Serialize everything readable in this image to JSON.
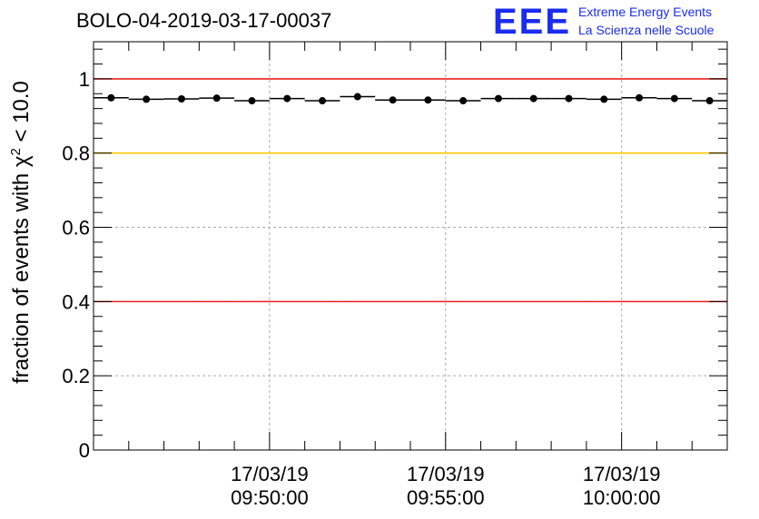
{
  "header": {
    "run_title": "BOLO-04-2019-03-17-00037",
    "logo_text": "EEE",
    "logo_line1": "Extreme Energy Events",
    "logo_line2": "La Scienza nelle Scuole"
  },
  "colors": {
    "axis": "#000000",
    "grid": "#aaaaaa",
    "red_line": "#e8201a",
    "yellow_line": "#ffc800",
    "marker": "#000000",
    "brand": "#1a2cf0"
  },
  "chart_data": {
    "type": "scatter",
    "title": "BOLO-04-2019-03-17-00037",
    "xlabel": "",
    "ylabel": "fraction of events with χ² < 10.0",
    "ylabel_parts": {
      "before": "fraction of events with ",
      "symbol": "χ",
      "superscript": "2",
      "after": " < 10.0"
    },
    "ylim": [
      0,
      1.1
    ],
    "yticks": [
      0,
      0.2,
      0.4,
      0.6,
      0.8,
      1
    ],
    "ytick_labels": [
      "0",
      "0.2",
      "0.4",
      "0.6",
      "0.8",
      "1"
    ],
    "xlim_minutes": [
      0,
      18
    ],
    "xticks_minutes": [
      5,
      10,
      15
    ],
    "xtick_labels": [
      [
        "17/03/19",
        "09:50:00"
      ],
      [
        "17/03/19",
        "09:55:00"
      ],
      [
        "17/03/19",
        "10:00:00"
      ]
    ],
    "bin_width_minutes": 1,
    "x": [
      0.5,
      1.5,
      2.5,
      3.5,
      4.5,
      5.5,
      6.5,
      7.5,
      8.5,
      9.5,
      10.5,
      11.5,
      12.5,
      13.5,
      14.5,
      15.5,
      16.5,
      17.5
    ],
    "values": [
      0.949,
      0.945,
      0.946,
      0.948,
      0.941,
      0.947,
      0.941,
      0.952,
      0.943,
      0.943,
      0.941,
      0.947,
      0.947,
      0.947,
      0.945,
      0.949,
      0.947,
      0.941
    ],
    "reference_lines": [
      {
        "y": 1.0,
        "color": "#e8201a"
      },
      {
        "y": 0.8,
        "color": "#ffc800"
      },
      {
        "y": 0.4,
        "color": "#e8201a"
      }
    ],
    "grid": true
  }
}
